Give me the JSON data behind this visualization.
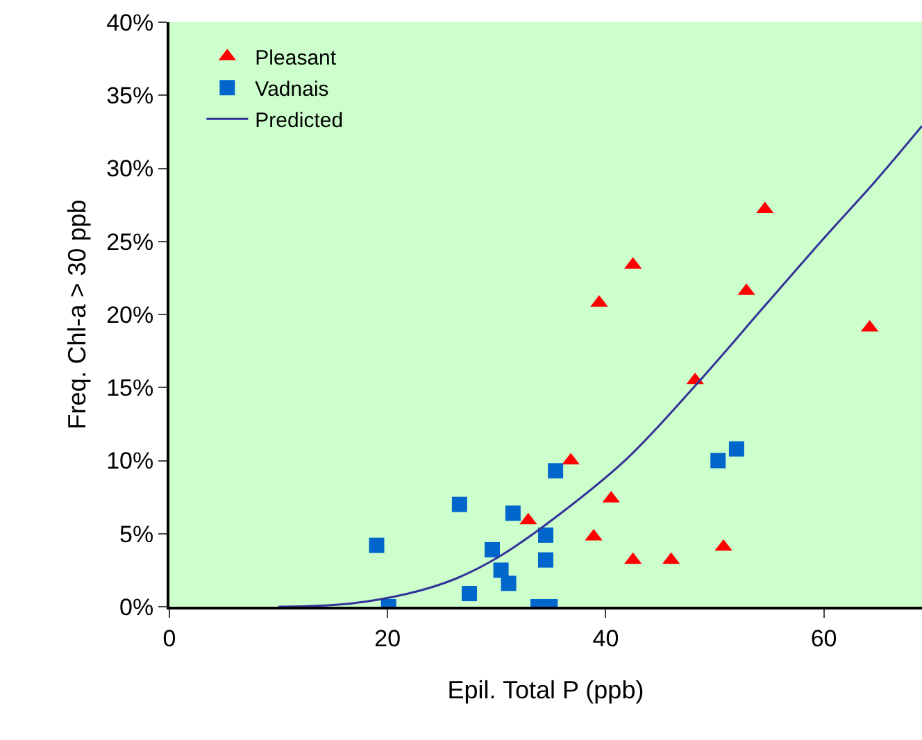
{
  "chart_data": {
    "type": "scatter",
    "xlabel": "Epil. Total P (ppb)",
    "ylabel": "Freq. Chl-a > 30 ppb",
    "xlim": [
      0,
      69
    ],
    "xticks": [
      0,
      20,
      40,
      60
    ],
    "ylim": [
      0,
      40
    ],
    "yticks": [
      {
        "value": 0,
        "label": "0%"
      },
      {
        "value": 5,
        "label": "5%"
      },
      {
        "value": 10,
        "label": "10%"
      },
      {
        "value": 15,
        "label": "15%"
      },
      {
        "value": 20,
        "label": "20%"
      },
      {
        "value": 25,
        "label": "25%"
      },
      {
        "value": 30,
        "label": "30%"
      },
      {
        "value": 35,
        "label": "35%"
      },
      {
        "value": 40,
        "label": "40%"
      }
    ],
    "grid": false,
    "legend": "top left",
    "series": [
      {
        "name": "Pleasant",
        "color": "#ff0000",
        "marker": "triangle",
        "x": [
          32.9,
          36.8,
          39.4,
          42.5,
          40.5,
          38.9,
          42.5,
          46.0,
          48.2,
          50.8,
          52.9,
          54.6,
          64.2
        ],
        "values": [
          5.9,
          10.0,
          20.8,
          23.4,
          7.4,
          4.8,
          3.2,
          3.2,
          15.5,
          4.1,
          21.6,
          27.2,
          19.1
        ]
      },
      {
        "name": "Vadnais",
        "color": "#0066cc",
        "marker": "square",
        "x": [
          19.0,
          20.1,
          26.6,
          27.5,
          29.6,
          31.5,
          30.4,
          31.1,
          34.5,
          34.5,
          35.4,
          33.8,
          34.9,
          50.3,
          52.0
        ],
        "values": [
          4.2,
          0,
          7.0,
          0.9,
          3.9,
          6.4,
          2.5,
          1.6,
          4.9,
          3.2,
          9.3,
          0,
          0,
          10.0,
          10.8
        ]
      },
      {
        "name": "Predicted",
        "type": "line",
        "color": "#333399",
        "marker": "none",
        "x": [
          10,
          16.4,
          21.9,
          26.2,
          30.4,
          35.9,
          41.9,
          48.3,
          54.6,
          60.1,
          64.7,
          69
        ],
        "values": [
          0,
          0.2,
          0.9,
          1.9,
          3.5,
          6.4,
          10.1,
          15.2,
          20.6,
          25.3,
          29.1,
          32.9
        ]
      }
    ]
  }
}
